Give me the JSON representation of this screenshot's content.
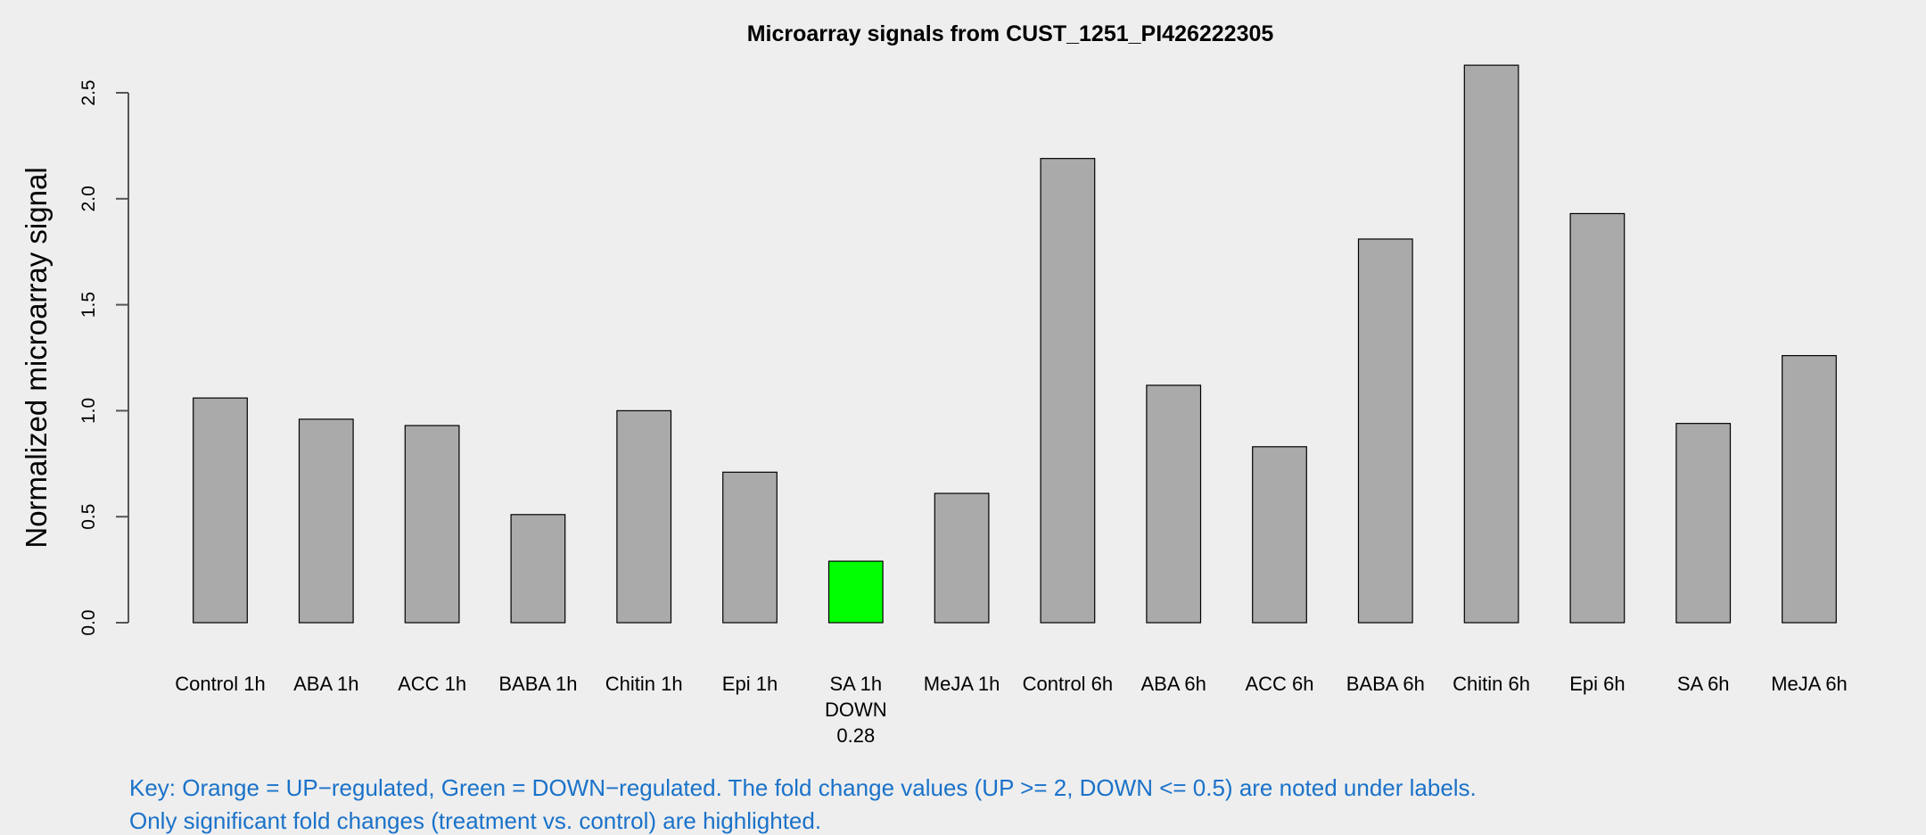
{
  "chart_data": {
    "type": "bar",
    "title": "Microarray signals from CUST_1251_PI426222305",
    "xlabel": "",
    "ylabel": "Normalized microarray signal",
    "ylim": [
      0,
      2.6
    ],
    "yticks": [
      "0.0",
      "0.5",
      "1.0",
      "1.5",
      "2.0",
      "2.5"
    ],
    "categories": [
      "Control 1h",
      "ABA 1h",
      "ACC 1h",
      "BABA 1h",
      "Chitin 1h",
      "Epi 1h",
      "SA 1h",
      "MeJA 1h",
      "Control 6h",
      "ABA 6h",
      "ACC 6h",
      "BABA 6h",
      "Chitin 6h",
      "Epi 6h",
      "SA 6h",
      "MeJA 6h"
    ],
    "values": [
      1.06,
      0.96,
      0.93,
      0.51,
      1.0,
      0.71,
      0.29,
      0.61,
      2.19,
      1.12,
      0.83,
      1.81,
      2.63,
      1.93,
      0.94,
      1.26
    ],
    "annotations": [
      {
        "category": "SA 1h",
        "regulation": "DOWN",
        "fold_change": "0.28"
      }
    ],
    "colors": {
      "default": "#aaaaaa",
      "down": "#00ff00",
      "up": "#ffa500"
    },
    "grid": false
  },
  "key": {
    "line1": "Key: Orange = UP−regulated, Green = DOWN−regulated. The fold change values (UP >= 2, DOWN <= 0.5) are noted under labels.",
    "line2": "Only significant fold changes (treatment vs. control) are highlighted."
  }
}
